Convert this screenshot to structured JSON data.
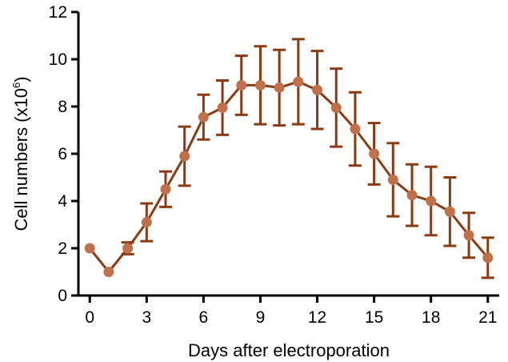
{
  "chart_data": {
    "type": "line",
    "title": "",
    "xlabel": "Days after electroporation",
    "ylabel_text": "Cell numbers (x10",
    "ylabel_exponent": "6",
    "ylabel_close": ")",
    "xlim": [
      -0.6,
      21.6
    ],
    "ylim": [
      0,
      12
    ],
    "xticks": [
      0,
      3,
      6,
      9,
      12,
      15,
      18,
      21
    ],
    "yticks": [
      0,
      2,
      4,
      6,
      8,
      10,
      12
    ],
    "xtick_labels": [
      "0",
      "3",
      "6",
      "9",
      "12",
      "15",
      "18",
      "21"
    ],
    "ytick_labels": [
      "0",
      "2",
      "4",
      "6",
      "8",
      "10",
      "12"
    ],
    "grid": false,
    "legend": "none",
    "colors": {
      "line": "#8B3A12",
      "marker": "#C0704A",
      "axis": "#000000"
    },
    "series": [
      {
        "x": [
          0,
          1,
          2,
          3,
          4,
          5,
          6,
          7,
          8,
          9,
          10,
          11,
          12,
          13,
          14,
          15,
          16,
          17,
          18,
          19,
          20,
          21
        ],
        "y": [
          2.0,
          1.0,
          2.0,
          3.1,
          4.5,
          5.9,
          7.55,
          7.95,
          8.9,
          8.9,
          8.8,
          9.05,
          8.7,
          7.95,
          7.05,
          6.0,
          4.9,
          4.25,
          4.0,
          3.55,
          2.55,
          1.6
        ],
        "error": [
          0,
          0,
          0.25,
          0.8,
          0.75,
          1.25,
          0.95,
          1.15,
          1.25,
          1.65,
          1.6,
          1.8,
          1.65,
          1.65,
          1.55,
          1.3,
          1.55,
          1.3,
          1.45,
          1.45,
          0.95,
          0.85
        ]
      }
    ]
  }
}
